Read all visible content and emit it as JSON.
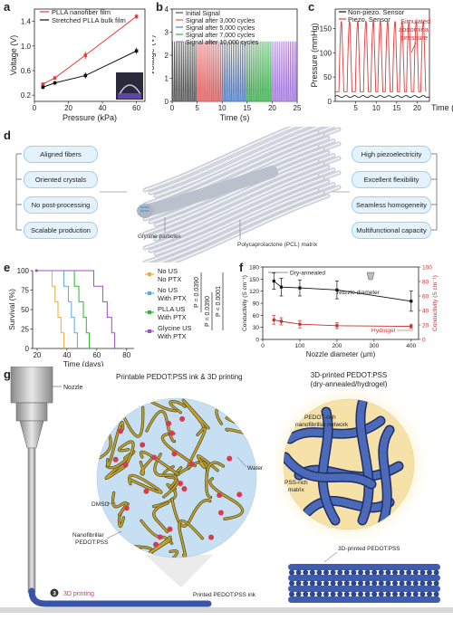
{
  "panels": {
    "a": {
      "letter": "a",
      "title": "",
      "xlabel": "Pressure (kPa)",
      "ylabel": "Voltage (V)",
      "xticks": [
        "0",
        "20",
        "40",
        "60"
      ],
      "yticks": [
        "0.2",
        "0.6",
        "1.0",
        "1.4"
      ],
      "legend": [
        "PLLA nanofiber film",
        "Stretched PLLA bulk film"
      ],
      "colors": {
        "red": "#e23b3b",
        "black": "#111111"
      }
    },
    "b": {
      "letter": "b",
      "xlabel": "Time (s)",
      "ylabel": "Voltage (V)",
      "xticks": [
        "0",
        "5",
        "10",
        "15",
        "20",
        "25"
      ],
      "yticks": [
        "0",
        "1",
        "2",
        "3",
        "4"
      ],
      "legend": [
        "Initial Signal",
        "Signal after 3,000 cycles",
        "Signal after 5,000 cycles",
        "Signal after 7,000 cycles",
        "Signal after 10,000 cycles"
      ],
      "colors": [
        "#555555",
        "#e05a5a",
        "#4f7fd0",
        "#38b04a",
        "#a27bd4"
      ]
    },
    "c": {
      "letter": "c",
      "xlabel": "Time (s)",
      "ylabel": "Pressure (mmHg)",
      "xticks": [
        "5",
        "10",
        "15",
        "20"
      ],
      "yticks": [
        "0",
        "50",
        "100",
        "150"
      ],
      "legend": [
        "Non-piezo. Sensor",
        "Piezo. Sensor"
      ],
      "annotation": "Simulated abdominal pressure",
      "colors": {
        "red": "#e23b3b",
        "black": "#111111"
      }
    },
    "d": {
      "letter": "d",
      "left_items": [
        "Aligned fibers",
        "Oriented crystals",
        "No post-processing",
        "Scalable production"
      ],
      "right_items": [
        "High piezoelectricity",
        "Excellent flexibility",
        "Seamless homogeneity",
        "Multifunctional capacity"
      ],
      "label_particles": "Glycine particles",
      "label_matrix": "Polycaprolactone (PCL) matrix"
    },
    "e": {
      "letter": "e",
      "xlabel": "Time (days)",
      "ylabel": "Survival (%)",
      "xticks": [
        "20",
        "40",
        "60",
        "80"
      ],
      "yticks": [
        "0",
        "25",
        "50",
        "75",
        "100"
      ],
      "legend": [
        "No US No PTX",
        "No US With PTX",
        "PLLA US With PTX",
        "Glycine US With PTX"
      ],
      "legend_line1": [
        "No US",
        "No US",
        "PLLA US",
        "Glycine US"
      ],
      "legend_line2": [
        "No PTX",
        "With PTX",
        "With PTX",
        "With PTX"
      ],
      "pvalues": [
        "P = 0.0390",
        "P = 0.0390",
        "P < 0.0001"
      ],
      "colors": [
        "#f2a93b",
        "#5aa9e0",
        "#2fb52f",
        "#9b4fc9"
      ]
    },
    "f": {
      "letter": "f",
      "xlabel": "Nozzle diameter (μm)",
      "ylabel_left": "Conductivity (S cm⁻¹)",
      "ylabel_right": "Conductivity (S cm⁻¹)",
      "xticks": [
        "0",
        "100",
        "200",
        "300",
        "400"
      ],
      "yticks_left": [
        "0",
        "30",
        "60",
        "90",
        "120",
        "150",
        "180"
      ],
      "yticks_right": [
        "0",
        "20",
        "40",
        "60",
        "80",
        "100"
      ],
      "label_dry": "Dry-annealed",
      "label_nozzle": "Nozzle diameter",
      "label_hydrogel": "Hydrogel"
    },
    "g": {
      "letter": "g",
      "title_left": "Printable PEDOT:PSS ink & 3D printing",
      "title_right_1": "3D-printed PEDOT:PSS",
      "title_right_2": "(dry-annealed/hydrogel)",
      "label_nozzle": "Nozzle",
      "label_water": "Water",
      "label_dmso": "DMSO",
      "label_nano_1": "Nanofibrillar",
      "label_nano_2": "PEDOT:PSS",
      "label_printed_ink": "Printed PEDOT:PSS ink",
      "label_3d": "3D printing",
      "step_number": "3",
      "label_network_1": "PEDOT-rich",
      "label_network_2": "nanofibrillar network",
      "label_pss_1": "PSS-rich",
      "label_pss_2": "matrix",
      "label_3dprinted": "3D-printed PEDOT:PSS"
    }
  },
  "chart_data": [
    {
      "type": "line",
      "panel": "a",
      "xlabel": "Pressure (kPa)",
      "ylabel": "Voltage (V)",
      "xlim": [
        0,
        65
      ],
      "ylim": [
        0.1,
        1.6
      ],
      "series": [
        {
          "name": "PLLA nanofiber film",
          "x": [
            5,
            12,
            30,
            60
          ],
          "y": [
            0.38,
            0.48,
            0.85,
            1.48
          ],
          "err": [
            0.02,
            0.03,
            0.06,
            0.04
          ]
        },
        {
          "name": "Stretched PLLA bulk film",
          "x": [
            5,
            12,
            30,
            60
          ],
          "y": [
            0.33,
            0.4,
            0.52,
            0.92
          ],
          "err": [
            0.03,
            0.03,
            0.05,
            0.05
          ]
        }
      ]
    },
    {
      "type": "line",
      "panel": "b",
      "xlabel": "Time (s)",
      "ylabel": "Voltage (V)",
      "xlim": [
        0,
        25
      ],
      "ylim": [
        0,
        4
      ],
      "amplitude": 2.6,
      "segments": [
        {
          "name": "Initial Signal",
          "start": 0,
          "end": 5
        },
        {
          "name": "Signal after 3,000 cycles",
          "start": 5,
          "end": 10
        },
        {
          "name": "Signal after 5,000 cycles",
          "start": 10,
          "end": 15
        },
        {
          "name": "Signal after 7,000 cycles",
          "start": 15,
          "end": 20
        },
        {
          "name": "Signal after 10,000 cycles",
          "start": 20,
          "end": 25
        }
      ]
    },
    {
      "type": "line",
      "panel": "c",
      "xlabel": "Time (s)",
      "ylabel": "Pressure (mmHg)",
      "xlim": [
        0,
        23
      ],
      "ylim": [
        0,
        190
      ],
      "series": [
        {
          "name": "Piezo. Sensor",
          "peaks_x": [
            1.5,
            3.5,
            5.5,
            7.5,
            9.3,
            11,
            12.8,
            14.6,
            16.3,
            18,
            19.8,
            21.5
          ],
          "peak_y": 160
        },
        {
          "name": "Non-piezo. Sensor",
          "level": 10
        }
      ]
    },
    {
      "type": "line",
      "panel": "e",
      "xlabel": "Time (days)",
      "ylabel": "Survival (%)",
      "xlim": [
        17,
        85
      ],
      "ylim": [
        0,
        100
      ],
      "series": [
        {
          "name": "No US No PTX",
          "x": [
            19,
            30,
            32,
            34,
            36,
            38
          ],
          "y": [
            100,
            80,
            60,
            40,
            20,
            0
          ]
        },
        {
          "name": "No US With PTX",
          "x": [
            19,
            38,
            41,
            43,
            45,
            47
          ],
          "y": [
            100,
            80,
            60,
            40,
            20,
            0
          ]
        },
        {
          "name": "PLLA US With PTX",
          "x": [
            19,
            45,
            48,
            51,
            53,
            55
          ],
          "y": [
            100,
            80,
            60,
            40,
            20,
            0
          ]
        },
        {
          "name": "Glycine US With PTX",
          "x": [
            19,
            58,
            64,
            67,
            70,
            72
          ],
          "y": [
            100,
            80,
            60,
            40,
            20,
            0
          ]
        }
      ]
    },
    {
      "type": "line",
      "panel": "f",
      "xlabel": "Nozzle diameter (μm)",
      "xlim": [
        0,
        420
      ],
      "series": [
        {
          "name": "Dry-annealed",
          "axis": "left",
          "ylim": [
            0,
            180
          ],
          "x": [
            30,
            50,
            100,
            200,
            400
          ],
          "y": [
            145,
            130,
            128,
            123,
            95
          ],
          "err": [
            20,
            22,
            20,
            22,
            25
          ]
        },
        {
          "name": "Hydrogel",
          "axis": "right",
          "ylim": [
            0,
            100
          ],
          "x": [
            30,
            50,
            100,
            200,
            400
          ],
          "y": [
            27,
            25,
            21,
            19,
            18
          ],
          "err": [
            6,
            5,
            5,
            4,
            3
          ]
        }
      ]
    }
  ]
}
